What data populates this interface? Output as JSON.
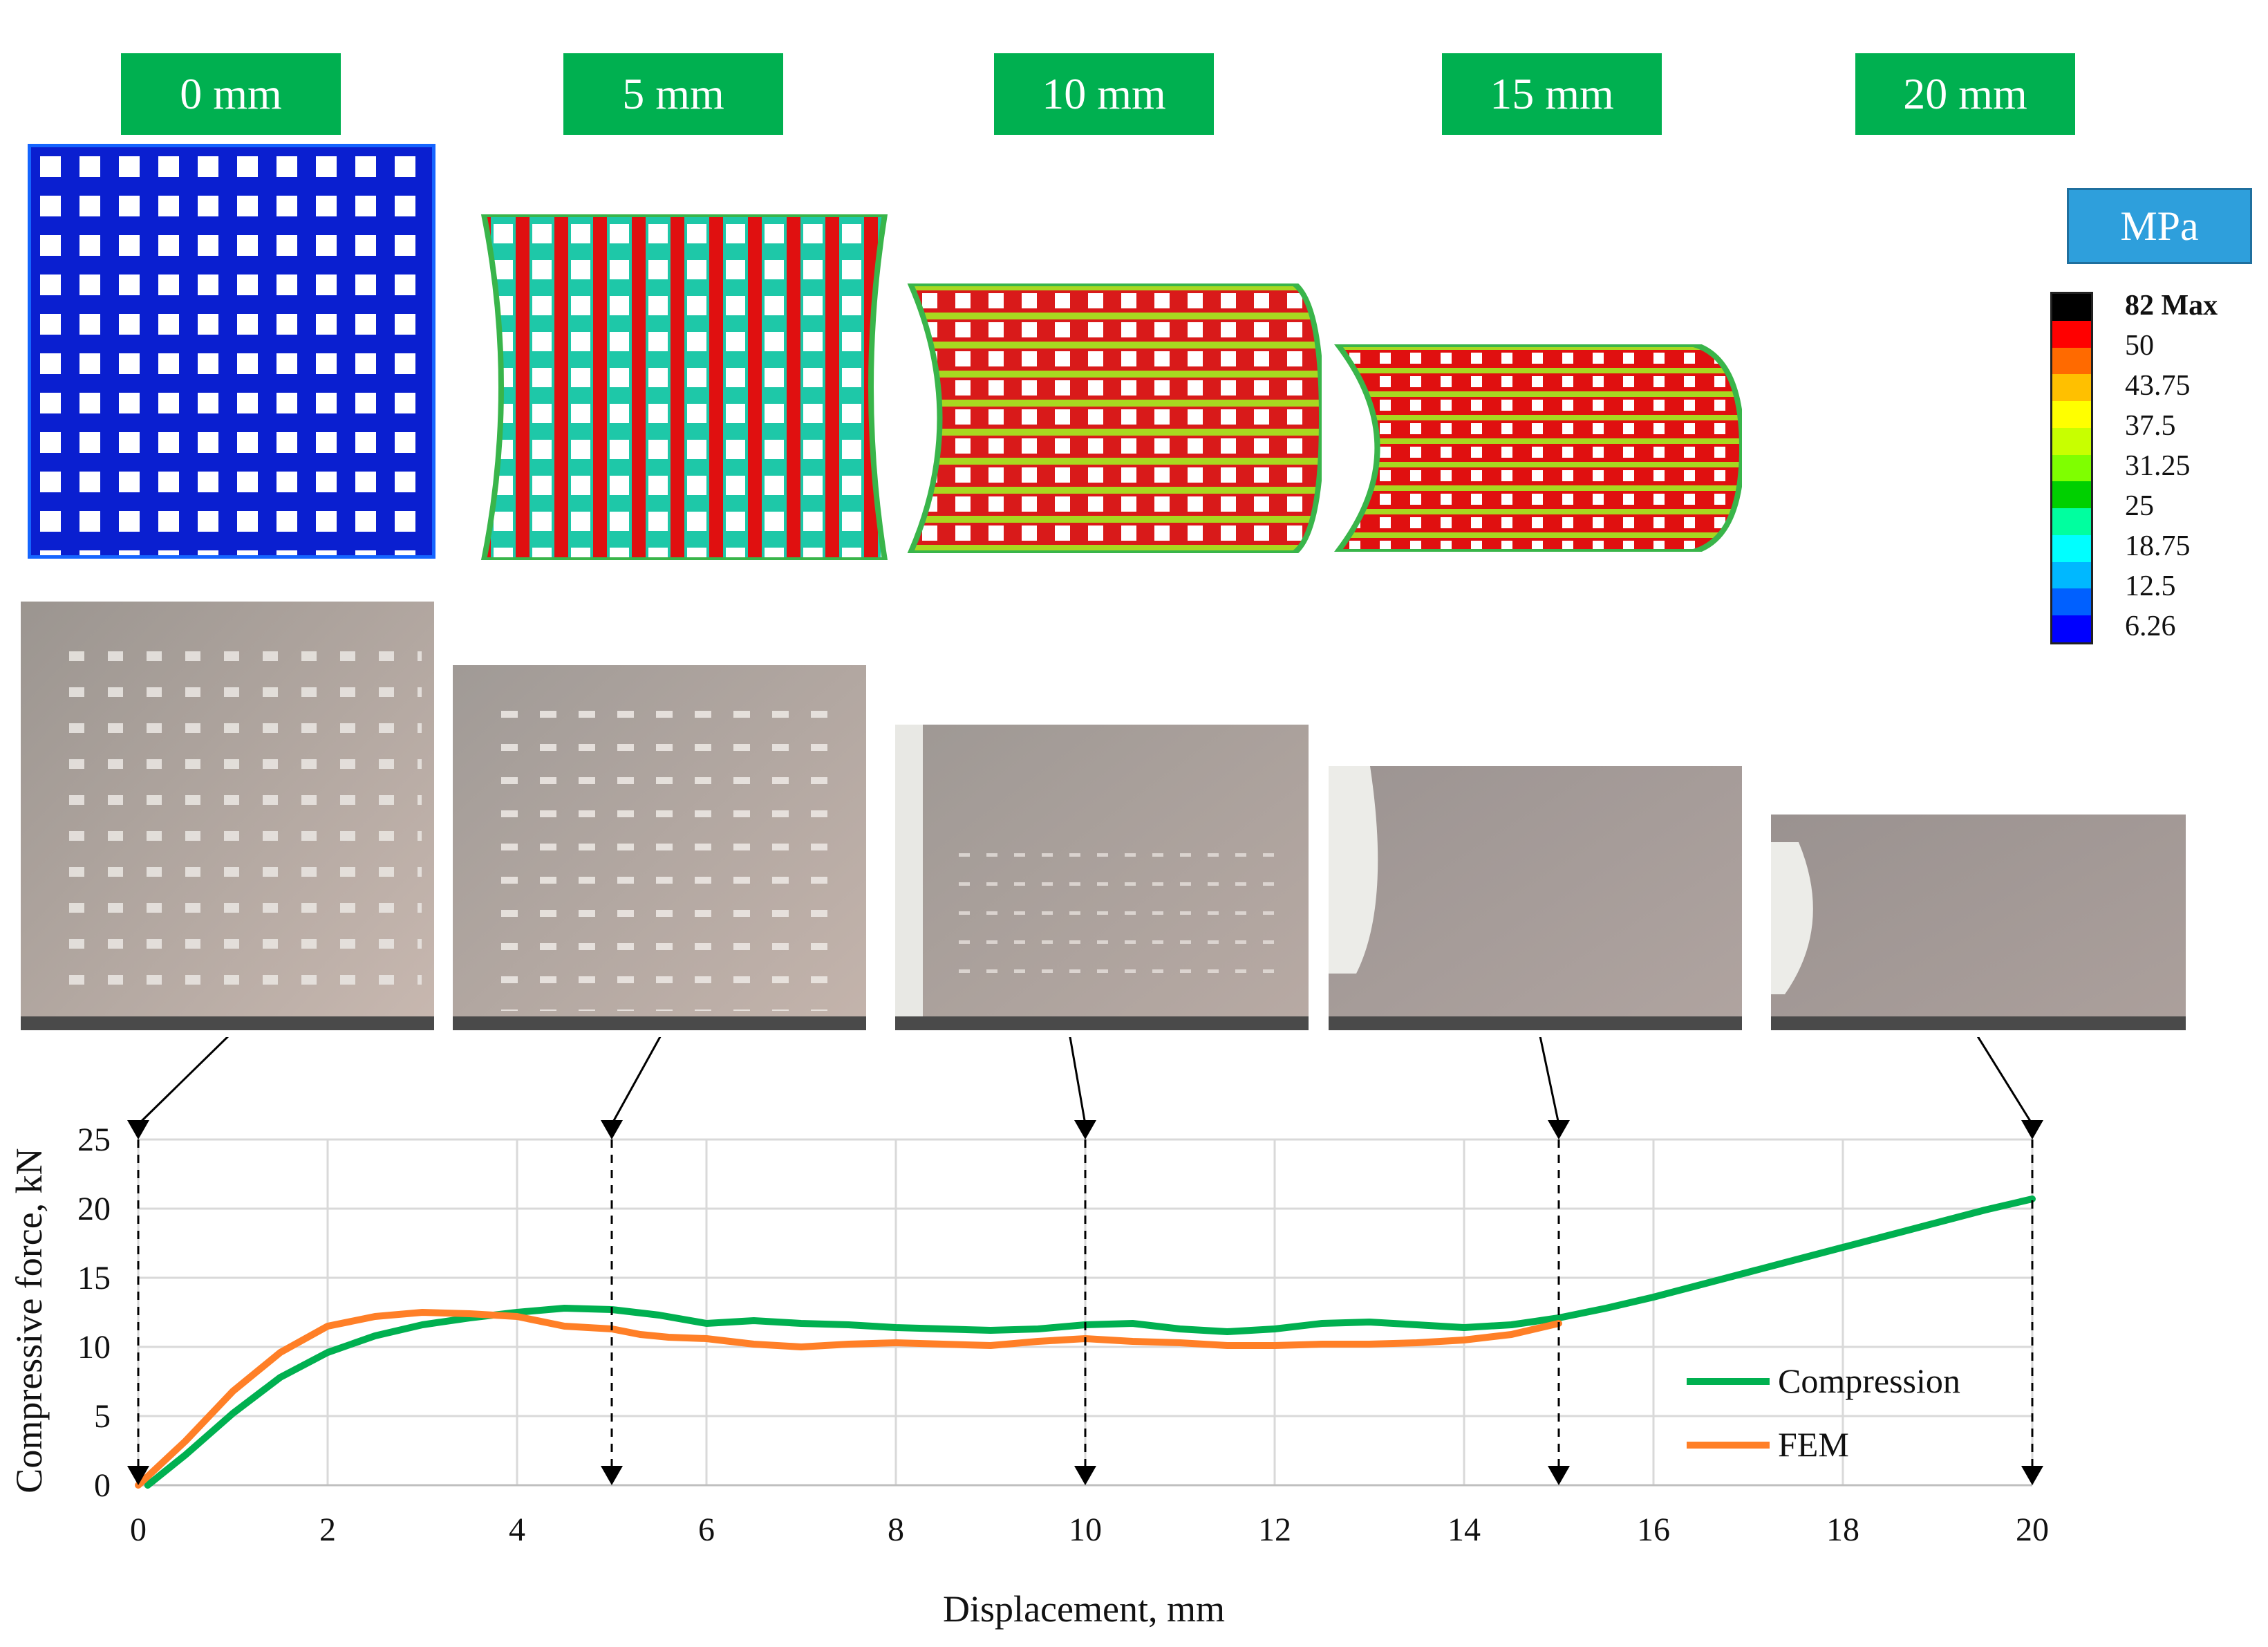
{
  "stages": [
    "0 mm",
    "5 mm",
    "10 mm",
    "15 mm",
    "20 mm"
  ],
  "stress_legend": {
    "unit": "MPa",
    "levels": [
      "82 Max",
      "50",
      "43.75",
      "37.5",
      "31.25",
      "25",
      "18.75",
      "12.5",
      "6.26"
    ],
    "colors": [
      "#ff0000",
      "#ff6a00",
      "#ffc000",
      "#ffff00",
      "#c8ff00",
      "#7fff00",
      "#00ff40",
      "#00ff9f",
      "#00ffff",
      "#00b8ff",
      "#006aff",
      "#0000ff"
    ]
  },
  "colors": {
    "stage_label": "#00b050",
    "compression": "#00b050",
    "fem": "#ff7f27",
    "unit_box": "#2e9fdc"
  },
  "chart_data": {
    "type": "line",
    "xlabel": "Displacement, mm",
    "ylabel": "Compressive force, kN",
    "xlim": [
      0,
      20
    ],
    "ylim": [
      0,
      25
    ],
    "xticks": [
      0,
      2,
      4,
      6,
      8,
      10,
      12,
      14,
      16,
      18,
      20
    ],
    "yticks": [
      0,
      5,
      10,
      15,
      20,
      25
    ],
    "grid": true,
    "legend_position": "bottom-right",
    "series": [
      {
        "name": "Compression",
        "x": [
          0.1,
          0.5,
          1,
          1.5,
          2,
          2.5,
          3,
          3.5,
          4,
          4.5,
          5,
          5.5,
          6,
          6.5,
          7,
          7.5,
          8,
          8.5,
          9,
          9.5,
          10,
          10.5,
          11,
          11.5,
          12,
          12.5,
          13,
          13.5,
          14,
          14.5,
          15,
          15.5,
          16,
          16.5,
          17,
          17.5,
          18,
          18.5,
          19,
          19.5,
          20
        ],
        "y": [
          0,
          2.2,
          5.2,
          7.8,
          9.6,
          10.8,
          11.6,
          12.1,
          12.5,
          12.8,
          12.7,
          12.3,
          11.7,
          11.9,
          11.7,
          11.6,
          11.4,
          11.3,
          11.2,
          11.3,
          11.6,
          11.7,
          11.3,
          11.1,
          11.3,
          11.7,
          11.8,
          11.6,
          11.4,
          11.6,
          12.1,
          12.8,
          13.6,
          14.5,
          15.4,
          16.3,
          17.2,
          18.1,
          19.0,
          19.9,
          20.7
        ]
      },
      {
        "name": "FEM",
        "x": [
          0,
          0.5,
          1,
          1.5,
          2,
          2.5,
          3,
          3.5,
          4,
          4.5,
          5,
          5.3,
          5.6,
          6,
          6.5,
          7,
          7.5,
          8,
          8.5,
          9,
          9.5,
          10,
          10.5,
          11,
          11.5,
          12,
          12.5,
          13,
          13.5,
          14,
          14.5,
          15
        ],
        "y": [
          0,
          3.2,
          6.8,
          9.6,
          11.5,
          12.2,
          12.5,
          12.4,
          12.2,
          11.5,
          11.3,
          10.9,
          10.7,
          10.6,
          10.2,
          10.0,
          10.2,
          10.3,
          10.2,
          10.1,
          10.4,
          10.6,
          10.4,
          10.3,
          10.1,
          10.1,
          10.2,
          10.2,
          10.3,
          10.5,
          10.9,
          11.7
        ]
      }
    ],
    "markers": [
      0,
      5,
      10,
      15,
      20
    ]
  }
}
